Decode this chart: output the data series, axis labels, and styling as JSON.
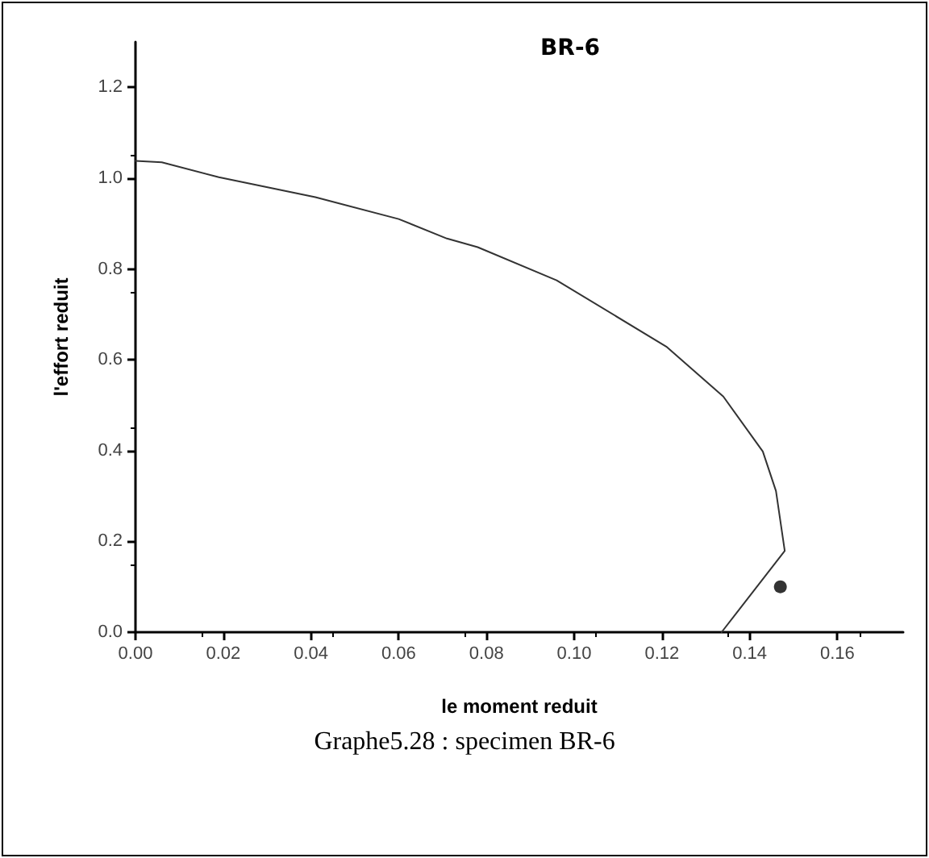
{
  "chart_data": {
    "type": "line",
    "title": "BR-6",
    "xlabel": "le moment reduit",
    "ylabel": "l'effort reduit",
    "annotations": [
      "Graphe5.28 : specimen BR-6"
    ],
    "xlim": [
      0,
      0.175
    ],
    "xticks": [
      {
        "value": 0,
        "label": "0.00"
      },
      0.02,
      0.04,
      0.06,
      0.08,
      {
        "value": 0.1,
        "label": "0.10"
      },
      0.12,
      0.14,
      0.16
    ],
    "ylim": [
      0,
      1.3
    ],
    "yticks": [
      {
        "value": 0,
        "label": "0.0"
      },
      0.2,
      0.4,
      0.6,
      0.8,
      {
        "value": 1,
        "label": "1.0"
      },
      1.2
    ],
    "grid": false,
    "marker": "none",
    "line_style": "solid",
    "series": [
      {
        "type": "line",
        "color": "#333333",
        "x": [
          0,
          0.006,
          0.019,
          0.041,
          0.06,
          0.071,
          0.078,
          0.096,
          0.121,
          0.134,
          0.143,
          0.146,
          0.148,
          0.1336
        ],
        "values": [
          1.038,
          1.035,
          1.002,
          0.958,
          0.91,
          0.867,
          0.848,
          0.775,
          0.629,
          0.519,
          0.398,
          0.311,
          0.179,
          0
        ]
      },
      {
        "type": "scatter",
        "color": "#000000",
        "marker": "circle",
        "x": [
          0.147
        ],
        "values": [
          0.1
        ]
      }
    ]
  }
}
